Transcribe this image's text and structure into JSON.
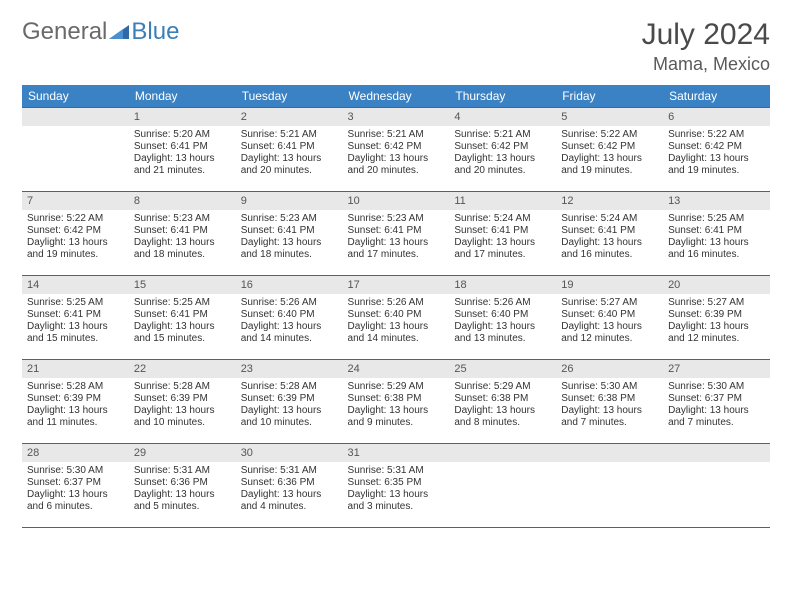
{
  "logo": {
    "part1": "General",
    "part2": "Blue"
  },
  "title": "July 2024",
  "location": "Mama, Mexico",
  "colors": {
    "header_bg": "#3b82c4",
    "header_text": "#ffffff",
    "daynum_bg": "#e8e8e8",
    "border": "#3b6a8f",
    "logo_general": "#6a6a6a",
    "logo_blue": "#3b7fb8"
  },
  "weekdays": [
    "Sunday",
    "Monday",
    "Tuesday",
    "Wednesday",
    "Thursday",
    "Friday",
    "Saturday"
  ],
  "weeks": [
    [
      {
        "day": "",
        "sunrise": "",
        "sunset": "",
        "daylight": ""
      },
      {
        "day": "1",
        "sunrise": "Sunrise: 5:20 AM",
        "sunset": "Sunset: 6:41 PM",
        "daylight": "Daylight: 13 hours and 21 minutes."
      },
      {
        "day": "2",
        "sunrise": "Sunrise: 5:21 AM",
        "sunset": "Sunset: 6:41 PM",
        "daylight": "Daylight: 13 hours and 20 minutes."
      },
      {
        "day": "3",
        "sunrise": "Sunrise: 5:21 AM",
        "sunset": "Sunset: 6:42 PM",
        "daylight": "Daylight: 13 hours and 20 minutes."
      },
      {
        "day": "4",
        "sunrise": "Sunrise: 5:21 AM",
        "sunset": "Sunset: 6:42 PM",
        "daylight": "Daylight: 13 hours and 20 minutes."
      },
      {
        "day": "5",
        "sunrise": "Sunrise: 5:22 AM",
        "sunset": "Sunset: 6:42 PM",
        "daylight": "Daylight: 13 hours and 19 minutes."
      },
      {
        "day": "6",
        "sunrise": "Sunrise: 5:22 AM",
        "sunset": "Sunset: 6:42 PM",
        "daylight": "Daylight: 13 hours and 19 minutes."
      }
    ],
    [
      {
        "day": "7",
        "sunrise": "Sunrise: 5:22 AM",
        "sunset": "Sunset: 6:42 PM",
        "daylight": "Daylight: 13 hours and 19 minutes."
      },
      {
        "day": "8",
        "sunrise": "Sunrise: 5:23 AM",
        "sunset": "Sunset: 6:41 PM",
        "daylight": "Daylight: 13 hours and 18 minutes."
      },
      {
        "day": "9",
        "sunrise": "Sunrise: 5:23 AM",
        "sunset": "Sunset: 6:41 PM",
        "daylight": "Daylight: 13 hours and 18 minutes."
      },
      {
        "day": "10",
        "sunrise": "Sunrise: 5:23 AM",
        "sunset": "Sunset: 6:41 PM",
        "daylight": "Daylight: 13 hours and 17 minutes."
      },
      {
        "day": "11",
        "sunrise": "Sunrise: 5:24 AM",
        "sunset": "Sunset: 6:41 PM",
        "daylight": "Daylight: 13 hours and 17 minutes."
      },
      {
        "day": "12",
        "sunrise": "Sunrise: 5:24 AM",
        "sunset": "Sunset: 6:41 PM",
        "daylight": "Daylight: 13 hours and 16 minutes."
      },
      {
        "day": "13",
        "sunrise": "Sunrise: 5:25 AM",
        "sunset": "Sunset: 6:41 PM",
        "daylight": "Daylight: 13 hours and 16 minutes."
      }
    ],
    [
      {
        "day": "14",
        "sunrise": "Sunrise: 5:25 AM",
        "sunset": "Sunset: 6:41 PM",
        "daylight": "Daylight: 13 hours and 15 minutes."
      },
      {
        "day": "15",
        "sunrise": "Sunrise: 5:25 AM",
        "sunset": "Sunset: 6:41 PM",
        "daylight": "Daylight: 13 hours and 15 minutes."
      },
      {
        "day": "16",
        "sunrise": "Sunrise: 5:26 AM",
        "sunset": "Sunset: 6:40 PM",
        "daylight": "Daylight: 13 hours and 14 minutes."
      },
      {
        "day": "17",
        "sunrise": "Sunrise: 5:26 AM",
        "sunset": "Sunset: 6:40 PM",
        "daylight": "Daylight: 13 hours and 14 minutes."
      },
      {
        "day": "18",
        "sunrise": "Sunrise: 5:26 AM",
        "sunset": "Sunset: 6:40 PM",
        "daylight": "Daylight: 13 hours and 13 minutes."
      },
      {
        "day": "19",
        "sunrise": "Sunrise: 5:27 AM",
        "sunset": "Sunset: 6:40 PM",
        "daylight": "Daylight: 13 hours and 12 minutes."
      },
      {
        "day": "20",
        "sunrise": "Sunrise: 5:27 AM",
        "sunset": "Sunset: 6:39 PM",
        "daylight": "Daylight: 13 hours and 12 minutes."
      }
    ],
    [
      {
        "day": "21",
        "sunrise": "Sunrise: 5:28 AM",
        "sunset": "Sunset: 6:39 PM",
        "daylight": "Daylight: 13 hours and 11 minutes."
      },
      {
        "day": "22",
        "sunrise": "Sunrise: 5:28 AM",
        "sunset": "Sunset: 6:39 PM",
        "daylight": "Daylight: 13 hours and 10 minutes."
      },
      {
        "day": "23",
        "sunrise": "Sunrise: 5:28 AM",
        "sunset": "Sunset: 6:39 PM",
        "daylight": "Daylight: 13 hours and 10 minutes."
      },
      {
        "day": "24",
        "sunrise": "Sunrise: 5:29 AM",
        "sunset": "Sunset: 6:38 PM",
        "daylight": "Daylight: 13 hours and 9 minutes."
      },
      {
        "day": "25",
        "sunrise": "Sunrise: 5:29 AM",
        "sunset": "Sunset: 6:38 PM",
        "daylight": "Daylight: 13 hours and 8 minutes."
      },
      {
        "day": "26",
        "sunrise": "Sunrise: 5:30 AM",
        "sunset": "Sunset: 6:38 PM",
        "daylight": "Daylight: 13 hours and 7 minutes."
      },
      {
        "day": "27",
        "sunrise": "Sunrise: 5:30 AM",
        "sunset": "Sunset: 6:37 PM",
        "daylight": "Daylight: 13 hours and 7 minutes."
      }
    ],
    [
      {
        "day": "28",
        "sunrise": "Sunrise: 5:30 AM",
        "sunset": "Sunset: 6:37 PM",
        "daylight": "Daylight: 13 hours and 6 minutes."
      },
      {
        "day": "29",
        "sunrise": "Sunrise: 5:31 AM",
        "sunset": "Sunset: 6:36 PM",
        "daylight": "Daylight: 13 hours and 5 minutes."
      },
      {
        "day": "30",
        "sunrise": "Sunrise: 5:31 AM",
        "sunset": "Sunset: 6:36 PM",
        "daylight": "Daylight: 13 hours and 4 minutes."
      },
      {
        "day": "31",
        "sunrise": "Sunrise: 5:31 AM",
        "sunset": "Sunset: 6:35 PM",
        "daylight": "Daylight: 13 hours and 3 minutes."
      },
      {
        "day": "",
        "sunrise": "",
        "sunset": "",
        "daylight": ""
      },
      {
        "day": "",
        "sunrise": "",
        "sunset": "",
        "daylight": ""
      },
      {
        "day": "",
        "sunrise": "",
        "sunset": "",
        "daylight": ""
      }
    ]
  ]
}
